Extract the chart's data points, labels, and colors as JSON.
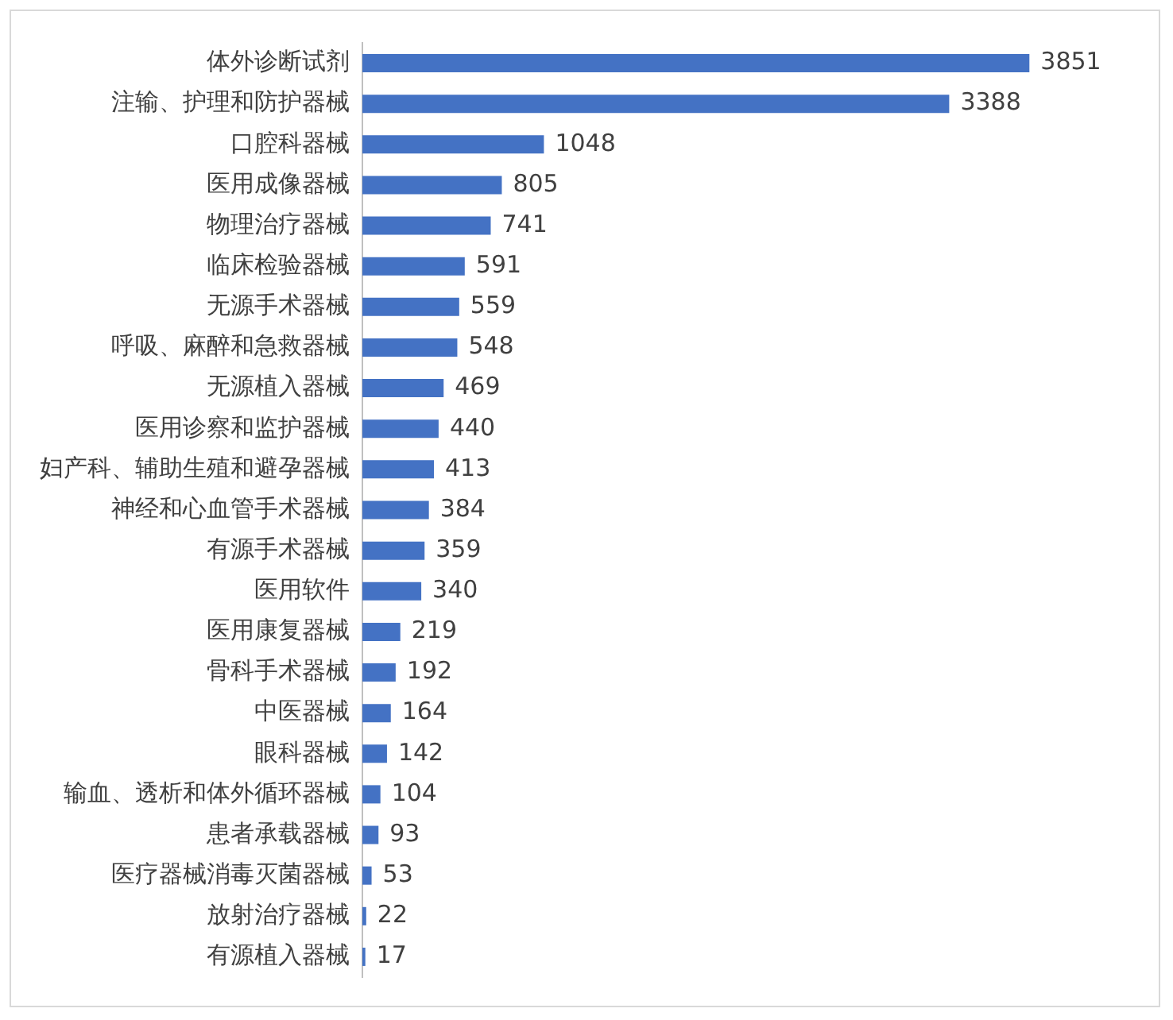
{
  "chart_data": {
    "type": "bar",
    "orientation": "horizontal",
    "categories": [
      "体外诊断试剂",
      "注输、护理和防护器械",
      "口腔科器械",
      "医用成像器械",
      "物理治疗器械",
      "临床检验器械",
      "无源手术器械",
      "呼吸、麻醉和急救器械",
      "无源植入器械",
      "医用诊察和监护器械",
      "妇产科、辅助生殖和避孕器械",
      "神经和心血管手术器械",
      "有源手术器械",
      "医用软件",
      "医用康复器械",
      "骨科手术器械",
      "中医器械",
      "眼科器械",
      "输血、透析和体外循环器械",
      "患者承载器械",
      "医疗器械消毒灭菌器械",
      "放射治疗器械",
      "有源植入器械"
    ],
    "values": [
      3851,
      3388,
      1048,
      805,
      741,
      591,
      559,
      548,
      469,
      440,
      413,
      384,
      359,
      340,
      219,
      192,
      164,
      142,
      104,
      93,
      53,
      22,
      17
    ],
    "color": "#4472c4",
    "data_labels": true
  }
}
